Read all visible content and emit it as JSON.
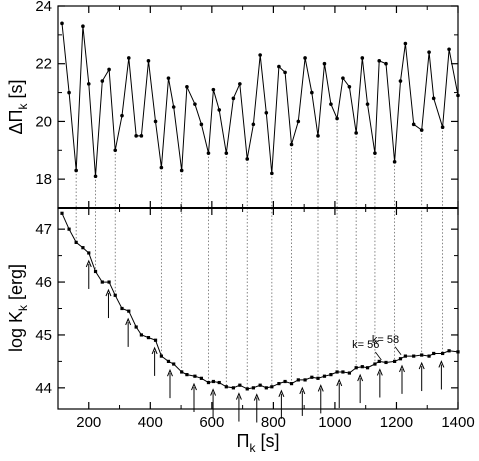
{
  "chart_data": [
    {
      "panel": "top",
      "type": "line",
      "ylabel": {
        "main": "ΔΠ",
        "sub": "k",
        "unit": "[s]"
      },
      "xlim": [
        100,
        1400
      ],
      "ylim": [
        17,
        24
      ],
      "yticks": [
        18,
        20,
        22,
        24
      ],
      "xticks": [
        200,
        400,
        600,
        800,
        1000,
        1200,
        1400
      ],
      "grid": false,
      "dashed_drop_lines": true,
      "series": [
        {
          "x": [
            113,
            136,
            159,
            181,
            200,
            222,
            244,
            266,
            286,
            308,
            330,
            354,
            371,
            394,
            417,
            436,
            459,
            476,
            502,
            519,
            545,
            566,
            589,
            605,
            624,
            647,
            670,
            691,
            715,
            735,
            757,
            777,
            795,
            818,
            838,
            859,
            881,
            903,
            925,
            945,
            966,
            987,
            1007,
            1026,
            1047,
            1069,
            1089,
            1106,
            1130,
            1144,
            1166,
            1194,
            1213,
            1229,
            1256,
            1282,
            1306,
            1321,
            1350,
            1371,
            1400
          ],
          "y": [
            23.4,
            21.0,
            18.3,
            23.3,
            21.3,
            18.1,
            21.4,
            21.8,
            19.0,
            20.2,
            22.2,
            19.5,
            19.5,
            22.1,
            20.0,
            18.4,
            21.5,
            20.5,
            18.3,
            21.2,
            20.6,
            19.9,
            18.9,
            21.1,
            20.4,
            18.9,
            20.8,
            21.3,
            18.7,
            19.9,
            22.3,
            20.3,
            18.2,
            21.9,
            21.7,
            19.2,
            20.0,
            22.2,
            21.0,
            19.5,
            22.0,
            20.6,
            20.1,
            21.5,
            21.2,
            19.6,
            22.2,
            20.6,
            18.9,
            22.1,
            22.0,
            18.6,
            21.4,
            22.7,
            19.9,
            19.7,
            22.4,
            20.8,
            19.8,
            22.5,
            20.9
          ]
        }
      ]
    },
    {
      "panel": "bottom",
      "type": "line",
      "xlabel": {
        "main": "Π",
        "sub": "k",
        "unit": "[s]"
      },
      "ylabel": {
        "main": "log K",
        "sub": "k",
        "unit": "[erg]"
      },
      "xlim": [
        100,
        1400
      ],
      "ylim": [
        43.6,
        47.4
      ],
      "yticks": [
        44,
        45,
        46,
        47
      ],
      "xticks": [
        200,
        400,
        600,
        800,
        1000,
        1200,
        1400
      ],
      "grid": false,
      "series": [
        {
          "x": [
            113,
            136,
            159,
            181,
            200,
            222,
            244,
            266,
            286,
            308,
            330,
            354,
            371,
            394,
            417,
            436,
            459,
            476,
            502,
            519,
            545,
            566,
            589,
            605,
            624,
            647,
            670,
            691,
            715,
            735,
            757,
            777,
            795,
            818,
            838,
            859,
            881,
            903,
            925,
            945,
            966,
            987,
            1007,
            1026,
            1047,
            1069,
            1089,
            1106,
            1130,
            1144,
            1166,
            1194,
            1213,
            1229,
            1256,
            1282,
            1306,
            1321,
            1350,
            1371,
            1400
          ],
          "y": [
            47.3,
            47.0,
            46.75,
            46.65,
            46.55,
            46.2,
            46.0,
            46.0,
            45.75,
            45.5,
            45.45,
            45.15,
            45.0,
            44.95,
            44.9,
            44.6,
            44.5,
            44.45,
            44.3,
            44.25,
            44.22,
            44.18,
            44.1,
            44.12,
            44.1,
            44.02,
            44.0,
            44.05,
            43.98,
            44.0,
            44.05,
            44.0,
            44.02,
            44.08,
            44.12,
            44.08,
            44.15,
            44.15,
            44.2,
            44.18,
            44.22,
            44.25,
            44.3,
            44.3,
            44.28,
            44.38,
            44.4,
            44.38,
            44.45,
            44.5,
            44.48,
            44.5,
            44.55,
            44.6,
            44.6,
            44.62,
            44.6,
            44.65,
            44.65,
            44.7,
            44.68
          ]
        }
      ],
      "arrows_x": [
        200,
        264,
        328,
        414,
        464,
        542,
        604,
        688,
        746,
        826,
        894,
        954,
        1014,
        1082,
        1146,
        1218,
        1282,
        1346
      ],
      "annotations": [
        {
          "text": "k= 56",
          "x": 1151,
          "y": 44.45
        },
        {
          "text": "k= 58",
          "x": 1215,
          "y": 44.55
        }
      ]
    }
  ]
}
